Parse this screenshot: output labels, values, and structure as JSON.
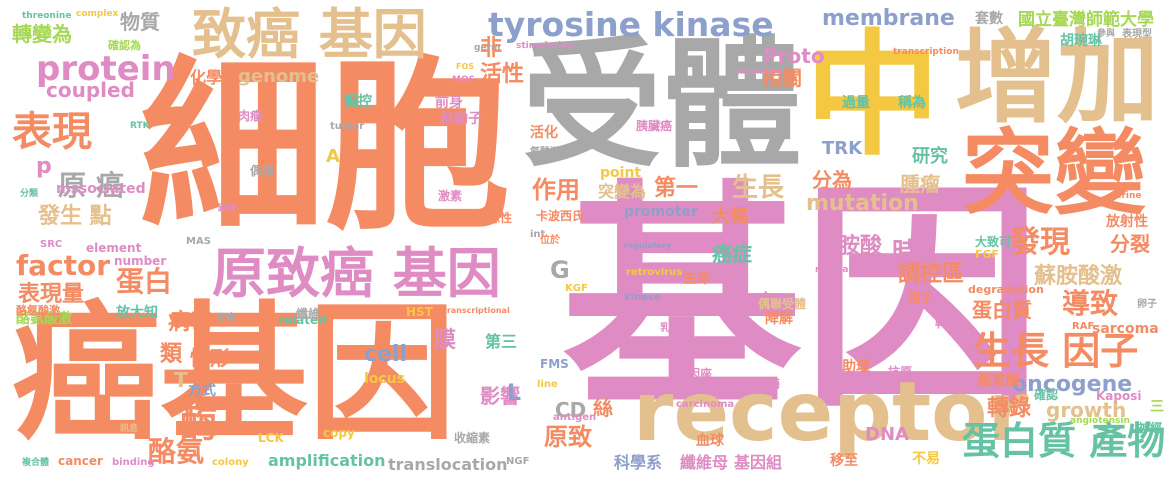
{
  "palette": {
    "orange": "#f58b62",
    "pink": "#e08cc4",
    "grey": "#a8a8a8",
    "yellow": "#f5c842",
    "tan": "#e4c08e",
    "green": "#a6d854",
    "blue": "#8da0cb",
    "teal": "#66c2a5"
  },
  "words": [
    {
      "text": "細胞",
      "color": "orange"
    },
    {
      "text": "基因",
      "color": "pink"
    },
    {
      "text": "受體",
      "color": "grey"
    },
    {
      "text": "中",
      "color": "yellow"
    },
    {
      "text": "癌基因",
      "color": "orange"
    },
    {
      "text": "增加",
      "color": "tan"
    },
    {
      "text": "突變",
      "color": "orange"
    },
    {
      "text": "receptor",
      "color": "tan"
    },
    {
      "text": "致癌 基因",
      "color": "tan"
    },
    {
      "text": "原致癌 基因",
      "color": "pink"
    },
    {
      "text": "tyrosine kinase",
      "color": "blue"
    },
    {
      "text": "protein",
      "color": "pink"
    },
    {
      "text": "coupled",
      "color": "pink"
    },
    {
      "text": "表現",
      "color": "orange"
    },
    {
      "text": "蛋白質 產物",
      "color": "teal"
    },
    {
      "text": "生長 因子",
      "color": "orange"
    },
    {
      "text": "oncogene",
      "color": "blue"
    },
    {
      "text": "factor",
      "color": "orange"
    },
    {
      "text": "蛋白",
      "color": "orange"
    },
    {
      "text": "表現量",
      "color": "orange"
    },
    {
      "text": "發生 點",
      "color": "tan"
    },
    {
      "text": "原 癌",
      "color": "grey"
    },
    {
      "text": "membrane",
      "color": "blue"
    },
    {
      "text": "Proto",
      "color": "pink"
    },
    {
      "text": "物質",
      "color": "grey"
    },
    {
      "text": "轉變為",
      "color": "green"
    },
    {
      "text": "國立臺灣師範大學",
      "color": "green"
    },
    {
      "text": "套數",
      "color": "grey"
    },
    {
      "text": "相關",
      "color": "orange"
    },
    {
      "text": "胡琬琳",
      "color": "teal"
    },
    {
      "text": "過量",
      "color": "teal"
    },
    {
      "text": "稱為",
      "color": "teal"
    },
    {
      "text": "研究",
      "color": "teal"
    },
    {
      "text": "TRK",
      "color": "blue"
    },
    {
      "text": "分為",
      "color": "orange"
    },
    {
      "text": "腫瘤",
      "color": "tan"
    },
    {
      "text": "mutation",
      "color": "tan"
    },
    {
      "text": "第一",
      "color": "orange"
    },
    {
      "text": "生長",
      "color": "tan"
    },
    {
      "text": "作用",
      "color": "orange"
    },
    {
      "text": "突變為",
      "color": "tan"
    },
    {
      "text": "發現",
      "color": "orange"
    },
    {
      "text": "分裂",
      "color": "orange"
    },
    {
      "text": "胺酸",
      "color": "pink"
    },
    {
      "text": "時",
      "color": "pink"
    },
    {
      "text": "B",
      "color": "pink"
    },
    {
      "text": "調控區",
      "color": "orange"
    },
    {
      "text": "蘇胺酸激",
      "color": "tan"
    },
    {
      "text": "蛋白質",
      "color": "orange"
    },
    {
      "text": "導致",
      "color": "orange"
    },
    {
      "text": "癌症",
      "color": "teal"
    },
    {
      "text": "轉錄",
      "color": "orange"
    },
    {
      "text": "growth",
      "color": "tan"
    },
    {
      "text": "影響",
      "color": "pink"
    },
    {
      "text": "CD",
      "color": "grey"
    },
    {
      "text": "絲",
      "color": "orange"
    },
    {
      "text": "原致",
      "color": "orange"
    },
    {
      "text": "DNA",
      "color": "pink"
    },
    {
      "text": "類",
      "color": "orange"
    },
    {
      "text": "情形",
      "color": "orange"
    },
    {
      "text": "病毒",
      "color": "orange"
    },
    {
      "text": "酶",
      "color": "orange"
    },
    {
      "text": "酪氨",
      "color": "orange"
    },
    {
      "text": "活性",
      "color": "orange"
    },
    {
      "text": "非",
      "color": "orange"
    },
    {
      "text": "化學",
      "color": "orange"
    },
    {
      "text": "genome",
      "color": "tan"
    },
    {
      "text": "調控",
      "color": "teal"
    },
    {
      "text": "前身",
      "color": "pink"
    },
    {
      "text": "啟動子",
      "color": "pink"
    },
    {
      "text": "cell",
      "color": "blue"
    },
    {
      "text": "膜",
      "color": "pink"
    },
    {
      "text": "第三",
      "color": "teal"
    },
    {
      "text": "L",
      "color": "blue"
    },
    {
      "text": "control",
      "color": "orange"
    },
    {
      "text": "方式",
      "color": "blue"
    },
    {
      "text": "T",
      "color": "tan"
    },
    {
      "text": "amplification",
      "color": "teal"
    },
    {
      "text": "translocation",
      "color": "grey"
    },
    {
      "text": "科學系",
      "color": "blue"
    },
    {
      "text": "纖維母",
      "color": "pink"
    },
    {
      "text": "基因組",
      "color": "pink"
    },
    {
      "text": "移至",
      "color": "orange"
    },
    {
      "text": "不易",
      "color": "yellow"
    },
    {
      "text": "轉位",
      "color": "pink"
    },
    {
      "text": "酪氨酸",
      "color": "orange"
    },
    {
      "text": "sarcoma",
      "color": "orange"
    },
    {
      "text": "Kaposi",
      "color": "pink"
    },
    {
      "text": "放射性",
      "color": "orange"
    },
    {
      "text": "大致可",
      "color": "teal"
    },
    {
      "text": "酪氨酸激",
      "color": "green"
    },
    {
      "text": "放大知",
      "color": "teal"
    },
    {
      "text": "mssociated",
      "color": "pink"
    },
    {
      "text": "p",
      "color": "pink"
    },
    {
      "text": "A",
      "color": "yellow"
    },
    {
      "text": "G",
      "color": "grey"
    },
    {
      "text": "point",
      "color": "yellow"
    },
    {
      "text": "promoter",
      "color": "blue"
    },
    {
      "text": "大幅",
      "color": "orange"
    },
    {
      "text": "生命",
      "color": "orange"
    },
    {
      "text": "neceptor",
      "color": "pink"
    },
    {
      "text": "降解",
      "color": "orange"
    },
    {
      "text": "助理",
      "color": "orange"
    },
    {
      "text": "locus",
      "color": "yellow"
    },
    {
      "text": "FMS",
      "color": "blue"
    },
    {
      "text": "基因座",
      "color": "pink"
    },
    {
      "text": "激酶",
      "color": "pink"
    },
    {
      "text": "RTK",
      "color": "teal"
    },
    {
      "text": "SRC",
      "color": "pink"
    },
    {
      "text": "MAS",
      "color": "grey"
    },
    {
      "text": "element",
      "color": "pink"
    },
    {
      "text": "number",
      "color": "pink"
    },
    {
      "text": "related",
      "color": "teal"
    },
    {
      "text": "HST",
      "color": "yellow"
    },
    {
      "text": "KGF",
      "color": "yellow"
    },
    {
      "text": "kinase",
      "color": "blue"
    },
    {
      "text": "retrovirus",
      "color": "yellow"
    },
    {
      "text": "regulatory",
      "color": "blue"
    },
    {
      "text": "nuclear",
      "color": "pink"
    },
    {
      "text": "FGF",
      "color": "yellow"
    },
    {
      "text": "degradation",
      "color": "orange"
    },
    {
      "text": "RAF",
      "color": "orange"
    },
    {
      "text": "serine",
      "color": "orange"
    },
    {
      "text": "threonine",
      "color": "teal"
    },
    {
      "text": "complex",
      "color": "yellow"
    },
    {
      "text": "germ",
      "color": "grey"
    },
    {
      "text": "stimulating",
      "color": "pink"
    },
    {
      "text": "mammary",
      "color": "pink"
    },
    {
      "text": "transcription",
      "color": "orange"
    },
    {
      "text": "MOS",
      "color": "pink"
    },
    {
      "text": "FOS",
      "color": "yellow"
    },
    {
      "text": "tumor",
      "color": "grey"
    },
    {
      "text": "int",
      "color": "grey"
    },
    {
      "text": "LCK",
      "color": "yellow"
    },
    {
      "text": "copy",
      "color": "yellow"
    },
    {
      "text": "antigen",
      "color": "pink"
    },
    {
      "text": "carcinoma",
      "color": "pink"
    },
    {
      "text": "angiotensin",
      "color": "green"
    },
    {
      "text": "cancer",
      "color": "orange"
    },
    {
      "text": "binding",
      "color": "pink"
    },
    {
      "text": "colony",
      "color": "yellow"
    },
    {
      "text": "NGF",
      "color": "grey"
    },
    {
      "text": "line",
      "color": "yellow"
    },
    {
      "text": "transcriptional",
      "color": "orange"
    },
    {
      "text": "酪氨酸激",
      "color": "orange"
    },
    {
      "text": "複合體",
      "color": "teal"
    },
    {
      "text": "訊息",
      "color": "tan"
    },
    {
      "text": "卡波西氏",
      "color": "orange"
    },
    {
      "text": "同源性",
      "color": "orange"
    },
    {
      "text": "激素",
      "color": "pink"
    },
    {
      "text": "乳癌",
      "color": "pink"
    },
    {
      "text": "最先",
      "color": "pink"
    },
    {
      "text": "神經",
      "color": "teal"
    },
    {
      "text": "抗原",
      "color": "pink"
    },
    {
      "text": "三",
      "color": "green"
    },
    {
      "text": "血球",
      "color": "orange"
    },
    {
      "text": "收縮素",
      "color": "grey"
    },
    {
      "text": "偶聯",
      "color": "grey"
    },
    {
      "text": "肉瘤",
      "color": "pink"
    },
    {
      "text": "活化",
      "color": "orange"
    },
    {
      "text": "胰臟癌",
      "color": "pink"
    },
    {
      "text": "確認",
      "color": "teal"
    },
    {
      "text": "胃癌",
      "color": "grey"
    },
    {
      "text": "纖維",
      "color": "grey"
    },
    {
      "text": "位於",
      "color": "orange"
    },
    {
      "text": "偶聯受體",
      "color": "tan"
    },
    {
      "text": "因子",
      "color": "orange"
    },
    {
      "text": "卵子",
      "color": "grey"
    },
    {
      "text": "表現型",
      "color": "grey"
    },
    {
      "text": "參與",
      "color": "grey"
    },
    {
      "text": "路徑",
      "color": "pink"
    },
    {
      "text": "分類",
      "color": "teal"
    },
    {
      "text": "氨酸激",
      "color": "grey"
    },
    {
      "text": "確認為",
      "color": "green"
    }
  ]
}
